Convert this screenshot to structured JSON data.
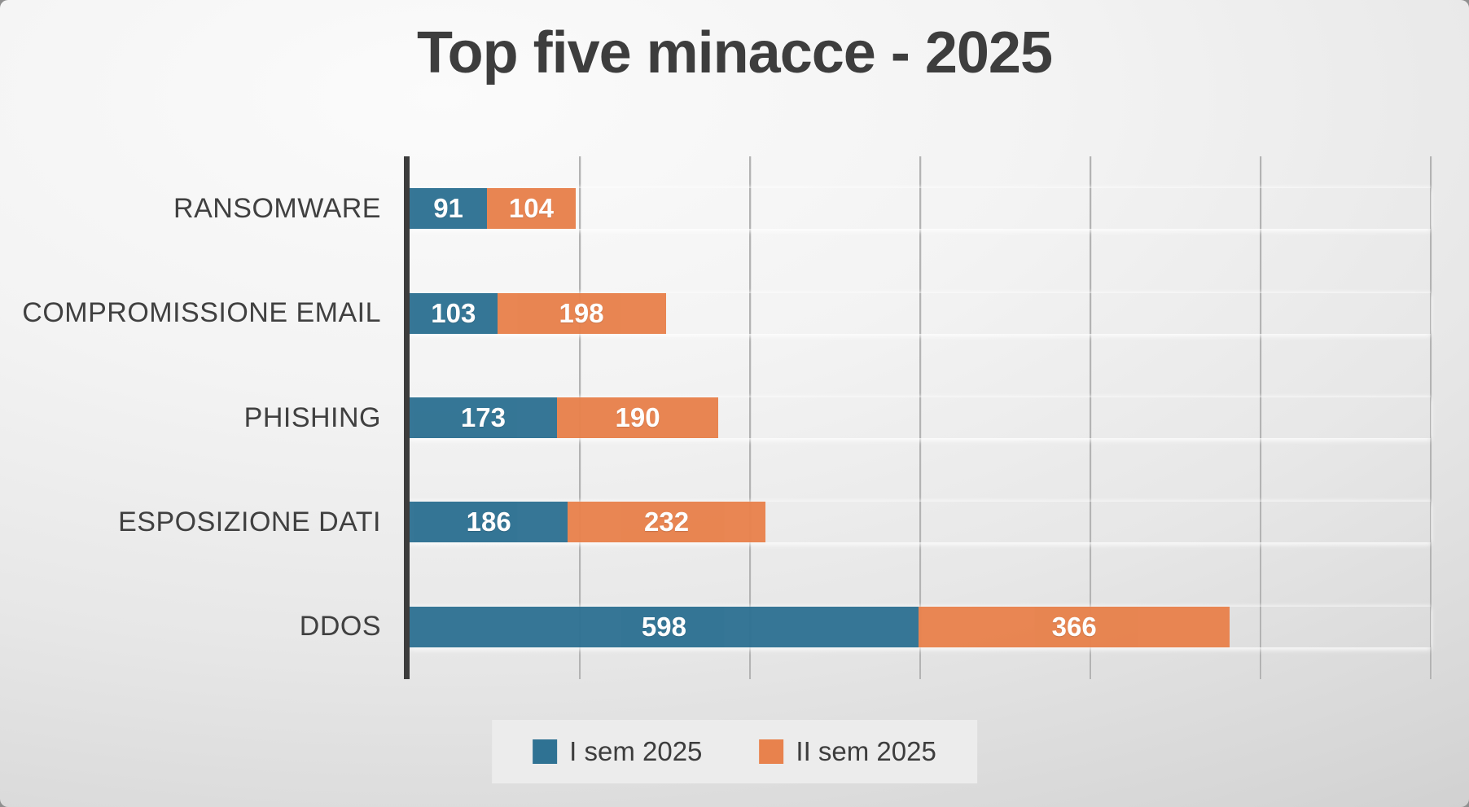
{
  "title": "Top five minacce - 2025",
  "colors": {
    "series1": "#2F7293",
    "series2": "#E8824D",
    "title_text": "#3D3D3D",
    "category_label_text": "#404040",
    "value_label_text": "#FFFFFF",
    "axis_line": "#3C3C3C",
    "gridline": "#B3B3B3",
    "legend_background": "#ECECEC",
    "slide_background_center": "#FBFBFB",
    "slide_background_edge": "#C6C6C6"
  },
  "chart_data": {
    "type": "bar",
    "orientation": "horizontal_stacked",
    "title": "Top five minacce - 2025",
    "categories": [
      "RANSOMWARE",
      "COMPROMISSIONE EMAIL",
      "PHISHING",
      "ESPOSIZIONE DATI",
      "DDOS"
    ],
    "series": [
      {
        "name": "I sem 2025",
        "color": "#2F7293",
        "values": [
          91,
          103,
          173,
          186,
          598
        ]
      },
      {
        "name": "II sem 2025",
        "color": "#E8824D",
        "values": [
          104,
          198,
          190,
          232,
          366
        ]
      }
    ],
    "xlim": [
      0,
      1200
    ],
    "gridline_interval": 200,
    "grid": true,
    "xlabel": "",
    "ylabel": "",
    "legend_position": "bottom",
    "value_labels": "inside-segment-white-bold"
  }
}
